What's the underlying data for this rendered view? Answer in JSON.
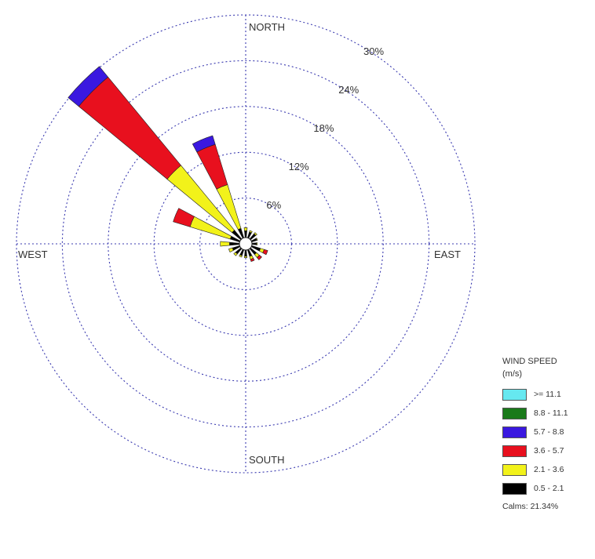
{
  "chart_data": {
    "type": "windrose",
    "direction_labels": {
      "north": "NORTH",
      "south": "SOUTH",
      "east": "EAST",
      "west": "WEST"
    },
    "radial_ticks": [
      6,
      12,
      18,
      24,
      30
    ],
    "radial_tick_labels": [
      "6%",
      "12%",
      "18%",
      "24%",
      "30%"
    ],
    "radial_max": 30,
    "legend": {
      "title": "WIND SPEED",
      "unit": "(m/s)",
      "placement": "bottom-right",
      "bins": [
        {
          "label": ">= 11.1",
          "color": "#66e8f0"
        },
        {
          "label": "8.8 - 11.1",
          "color": "#1a7a1a"
        },
        {
          "label": "5.7 - 8.8",
          "color": "#3a18e0"
        },
        {
          "label": "3.6 - 5.7",
          "color": "#e8101e"
        },
        {
          "label": "2.1 - 3.6",
          "color": "#f2f21a"
        },
        {
          "label": "0.5 - 2.1",
          "color": "#000000"
        }
      ]
    },
    "calms": "Calms: 21.34%",
    "sectors": [
      {
        "direction": "N",
        "angle": 0,
        "values": [
          0.9,
          0.4,
          0,
          0,
          0,
          0
        ]
      },
      {
        "direction": "NNE",
        "angle": 22.5,
        "values": [
          0.8,
          0.2,
          0,
          0,
          0,
          0
        ]
      },
      {
        "direction": "NE",
        "angle": 45,
        "values": [
          0.9,
          0.2,
          0,
          0,
          0,
          0
        ]
      },
      {
        "direction": "ENE",
        "angle": 67.5,
        "values": [
          0.7,
          0.1,
          0,
          0,
          0,
          0
        ]
      },
      {
        "direction": "E",
        "angle": 90,
        "values": [
          0.6,
          0.1,
          0,
          0,
          0,
          0
        ]
      },
      {
        "direction": "ESE",
        "angle": 112.5,
        "values": [
          1.2,
          0.5,
          0.5,
          0,
          0,
          0
        ]
      },
      {
        "direction": "SE",
        "angle": 135,
        "values": [
          1.0,
          0.5,
          0.4,
          0,
          0,
          0
        ]
      },
      {
        "direction": "SSE",
        "angle": 157.5,
        "values": [
          0.9,
          0.4,
          0.3,
          0,
          0,
          0
        ]
      },
      {
        "direction": "S",
        "angle": 180,
        "values": [
          0.8,
          0.2,
          0,
          0,
          0,
          0
        ]
      },
      {
        "direction": "SSW",
        "angle": 202.5,
        "values": [
          0.8,
          0.2,
          0,
          0,
          0,
          0
        ]
      },
      {
        "direction": "SW",
        "angle": 225,
        "values": [
          0.9,
          0.3,
          0,
          0,
          0,
          0
        ]
      },
      {
        "direction": "WSW",
        "angle": 247.5,
        "values": [
          1.0,
          0.5,
          0,
          0,
          0,
          0
        ]
      },
      {
        "direction": "W",
        "angle": 270,
        "values": [
          1.3,
          1.2,
          0,
          0,
          0,
          0
        ]
      },
      {
        "direction": "WNW",
        "angle": 292.5,
        "values": [
          1.3,
          5.5,
          2.3,
          0,
          0,
          0
        ]
      },
      {
        "direction": "NW",
        "angle": 315,
        "values": [
          1.5,
          11.0,
          15.0,
          1.8,
          0,
          0
        ]
      },
      {
        "direction": "NNW",
        "angle": 337.5,
        "values": [
          1.3,
          6.0,
          5.5,
          1.2,
          0,
          0
        ]
      }
    ]
  }
}
